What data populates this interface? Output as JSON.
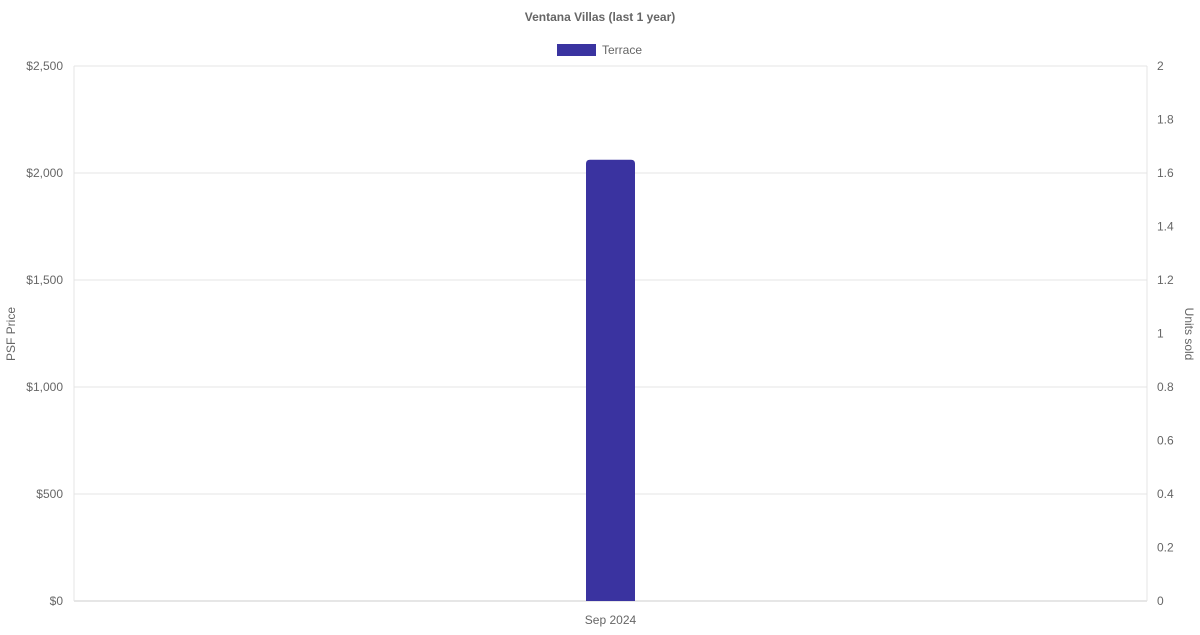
{
  "chart_data": {
    "type": "bar",
    "title": "Ventana Villas (last 1 year)",
    "categories": [
      "Sep 2024"
    ],
    "series": [
      {
        "name": "Terrace",
        "values": [
          2062
        ],
        "color": "#3a33a0",
        "axis": "left"
      }
    ],
    "ylabel": "PSF Price",
    "y2label": "Units sold",
    "ylim": [
      0,
      2500
    ],
    "y2lim": [
      0,
      2
    ],
    "yticks": [
      "$0",
      "$500",
      "$1,000",
      "$1,500",
      "$2,000",
      "$2,500"
    ],
    "y2ticks": [
      "0",
      "0.2",
      "0.4",
      "0.6",
      "0.8",
      "1",
      "1.2",
      "1.4",
      "1.6",
      "1.8",
      "2"
    ],
    "grid": true,
    "legend": "top"
  }
}
